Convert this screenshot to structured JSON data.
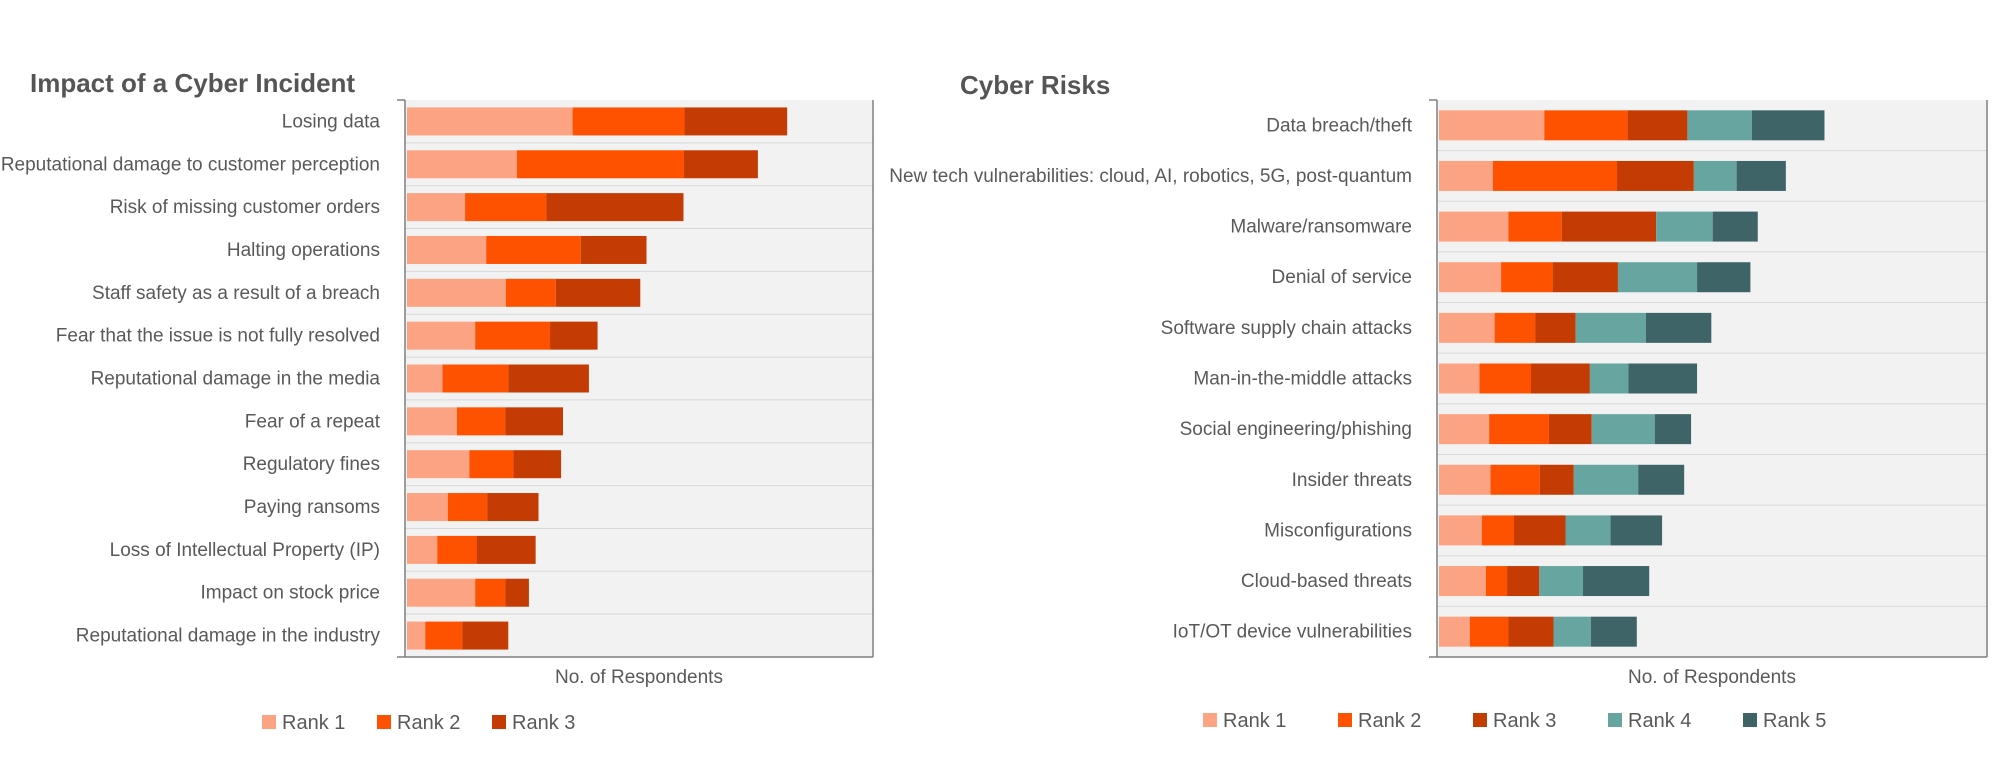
{
  "chart_data": [
    {
      "type": "bar",
      "orientation": "horizontal",
      "stacked": true,
      "title": "Impact of a Cyber Incident",
      "xlabel": "No. of Respondents",
      "ylabel": "",
      "xlim": [
        0,
        100
      ],
      "grid": true,
      "legend_position": "bottom",
      "categories": [
        "Losing data",
        "Reputational damage to customer perception",
        "Risk of missing customer orders",
        "Halting operations",
        "Staff safety as a result of a breach",
        "Fear that the issue is not fully resolved",
        "Reputational damage in the media",
        "Fear of a repeat",
        "Regulatory fines",
        "Paying ransoms",
        "Loss of Intellectual Property (IP)",
        "Impact on stock price",
        "Reputational damage in the industry"
      ],
      "series": [
        {
          "name": "Rank 1",
          "color": "#FCA384",
          "values": [
            34.5,
            22.9,
            12.1,
            16.5,
            20.6,
            14.2,
            7.4,
            10.4,
            13.0,
            8.5,
            6.3,
            14.2,
            3.8
          ]
        },
        {
          "name": "Rank 2",
          "color": "#FE5201",
          "values": [
            23.3,
            34.8,
            16.9,
            19.7,
            10.4,
            15.6,
            13.7,
            10.1,
            9.2,
            8.2,
            8.2,
            6.3,
            7.7
          ]
        },
        {
          "name": "Rank 3",
          "color": "#C43C03",
          "values": [
            21.4,
            15.4,
            28.6,
            13.7,
            17.6,
            9.9,
            16.8,
            12.0,
            9.9,
            10.7,
            12.3,
            4.9,
            9.6
          ]
        }
      ]
    },
    {
      "type": "bar",
      "orientation": "horizontal",
      "stacked": true,
      "title": "Cyber Risks",
      "xlabel": "No. of Respondents",
      "ylabel": "",
      "xlim": [
        0,
        100
      ],
      "grid": true,
      "legend_position": "bottom",
      "categories": [
        "Data breach/theft",
        "New tech vulnerabilities: cloud, AI, robotics, 5G, post-quantum",
        "Malware/ransomware",
        "Denial of service",
        "Software supply chain attacks",
        "Man-in-the-middle attacks",
        "Social engineering/phishing",
        "Insider threats",
        "Misconfigurations",
        "Cloud-based threats",
        "IoT/OT device vulnerabilities"
      ],
      "series": [
        {
          "name": "Rank 1",
          "color": "#FCA384",
          "values": [
            22.9,
            11.7,
            15.1,
            13.5,
            12.1,
            8.8,
            10.9,
            11.2,
            9.3,
            10.2,
            6.7
          ]
        },
        {
          "name": "Rank 2",
          "color": "#FE5201",
          "values": [
            18.1,
            27.0,
            11.6,
            11.2,
            8.8,
            11.2,
            13.0,
            10.7,
            7.0,
            4.6,
            8.4
          ]
        },
        {
          "name": "Rank 3",
          "color": "#C43C03",
          "values": [
            13.0,
            16.7,
            20.5,
            14.2,
            8.8,
            12.8,
            9.3,
            7.4,
            11.2,
            7.0,
            9.8
          ]
        },
        {
          "name": "Rank 4",
          "color": "#67A5A0",
          "values": [
            14.0,
            9.3,
            12.3,
            17.2,
            15.3,
            8.4,
            13.7,
            14.0,
            9.8,
            9.5,
            8.1
          ]
        },
        {
          "name": "Rank 5",
          "color": "#3F6468",
          "values": [
            15.8,
            10.7,
            9.8,
            11.6,
            14.2,
            14.9,
            7.9,
            10.0,
            11.2,
            14.4,
            10.0
          ]
        }
      ]
    }
  ]
}
